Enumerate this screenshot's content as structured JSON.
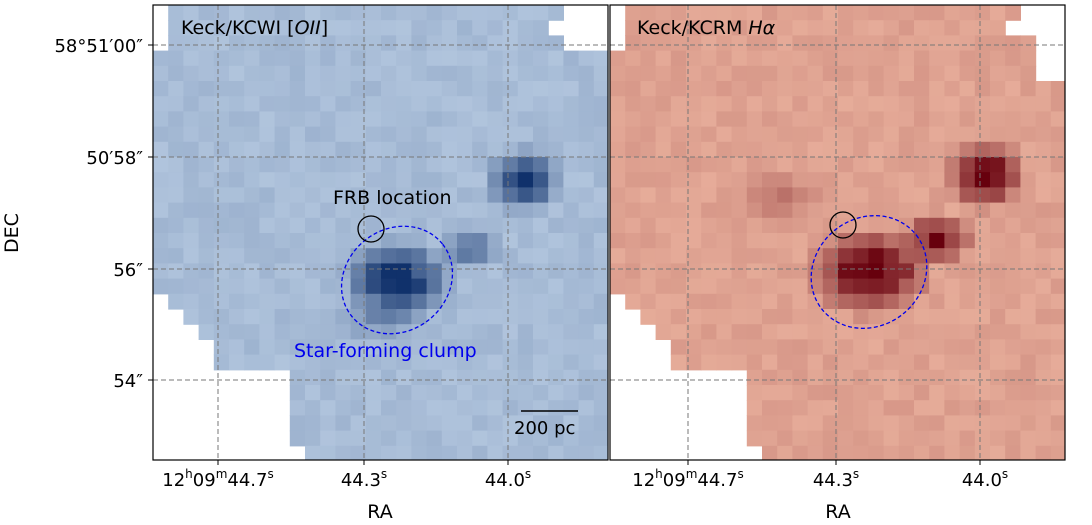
{
  "panels": [
    {
      "id": "left",
      "title_main": "Keck/KCWI [",
      "title_italic": "OII",
      "title_end": "]",
      "colormap": "blues",
      "xlabel": "RA",
      "x_ticks": [
        "12h09m44.7s",
        "44.3s",
        "44.0s"
      ],
      "x_tick_parts": [
        {
          "a": "12",
          "b": "h",
          "c": "09",
          "d": "m",
          "e": "44.7",
          "f": "s"
        },
        {
          "a": "44.3",
          "b": "s"
        },
        {
          "a": "44.0",
          "b": "s"
        }
      ],
      "annotations": {
        "frb_label": "FRB location",
        "clump_label": "Star-forming clump",
        "scalebar_label": "200 pc"
      }
    },
    {
      "id": "right",
      "title_main": "Keck/KCRM ",
      "title_italic": "Hα",
      "title_end": "",
      "colormap": "reds",
      "xlabel": "RA",
      "x_tick_parts": [
        {
          "a": "12",
          "b": "h",
          "c": "09",
          "d": "m",
          "e": "44.7",
          "f": "s"
        },
        {
          "a": "44.3",
          "b": "s"
        },
        {
          "a": "44.0",
          "b": "s"
        }
      ]
    }
  ],
  "ylabel": "DEC",
  "y_ticks": [
    "58°51′00″",
    "50′58″",
    "56″",
    "54″"
  ],
  "colors": {
    "clump_ellipse": "#0000ee",
    "clump_label": "#0000ee",
    "frb_circle": "#000000",
    "grid": "#777777",
    "blues_low": "#c6d8ec",
    "blues_high": "#10316b",
    "reds_low": "#f7c3ac",
    "reds_high": "#67000d"
  }
}
